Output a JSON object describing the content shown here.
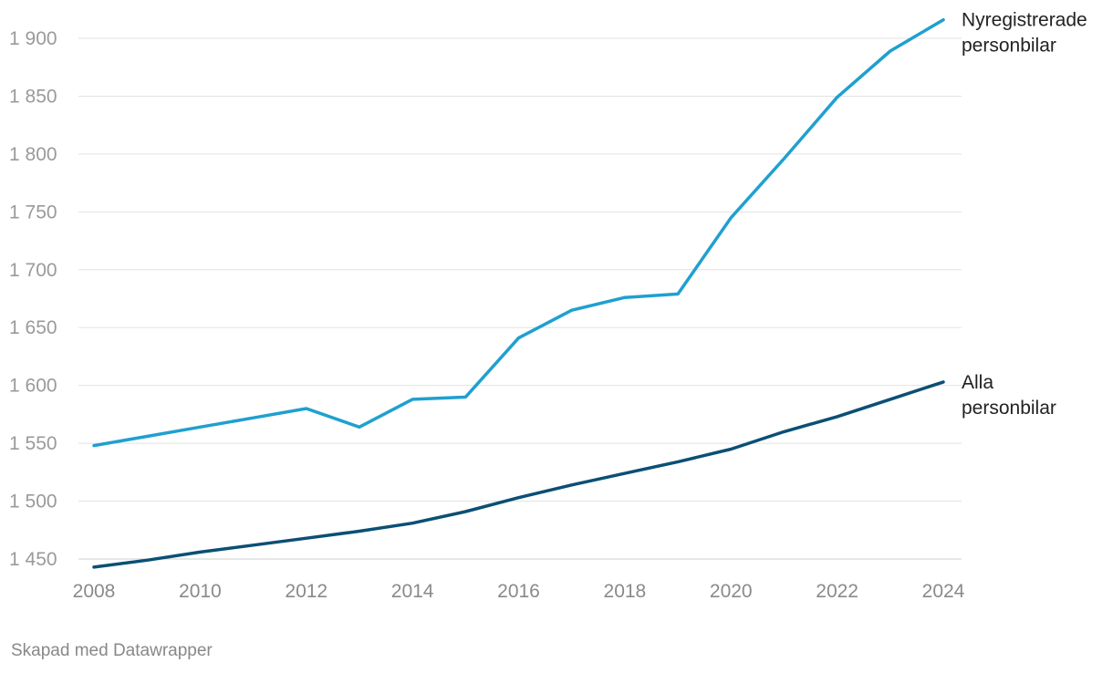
{
  "chart_data": {
    "type": "line",
    "x": [
      2008,
      2009,
      2010,
      2011,
      2012,
      2013,
      2014,
      2015,
      2016,
      2017,
      2018,
      2019,
      2020,
      2021,
      2022,
      2023,
      2024
    ],
    "series": [
      {
        "name": "Nyregistrerade personbilar",
        "label_lines": [
          "Nyregistrerade",
          "personbilar"
        ],
        "color": "#1fa0d0",
        "values": [
          1548,
          1556,
          1564,
          1572,
          1580,
          1564,
          1588,
          1590,
          1641,
          1665,
          1676,
          1679,
          1745,
          1796,
          1849,
          1889,
          1916
        ]
      },
      {
        "name": "Alla personbilar",
        "label_lines": [
          "Alla",
          "personbilar"
        ],
        "color": "#0b4f75",
        "values": [
          1443,
          1449,
          1456,
          1462,
          1468,
          1474,
          1481,
          1491,
          1503,
          1514,
          1524,
          1534,
          1545,
          1560,
          1573,
          1588,
          1603
        ]
      }
    ],
    "y_ticks": [
      1450,
      1500,
      1550,
      1600,
      1650,
      1700,
      1750,
      1800,
      1850,
      1900
    ],
    "y_tick_labels": [
      "1 450",
      "1 500",
      "1 550",
      "1 600",
      "1 650",
      "1 700",
      "1 750",
      "1 800",
      "1 850",
      "1 900"
    ],
    "x_ticks": [
      2008,
      2010,
      2012,
      2014,
      2016,
      2018,
      2020,
      2022,
      2024
    ],
    "x_tick_labels": [
      "2008",
      "2010",
      "2012",
      "2014",
      "2016",
      "2018",
      "2020",
      "2022",
      "2024"
    ],
    "ylim": [
      1440,
      1920
    ],
    "xlim": [
      2008,
      2024
    ],
    "grid": true,
    "title": "",
    "xlabel": "",
    "ylabel": ""
  },
  "footer": {
    "credit": "Skapad med Datawrapper"
  }
}
